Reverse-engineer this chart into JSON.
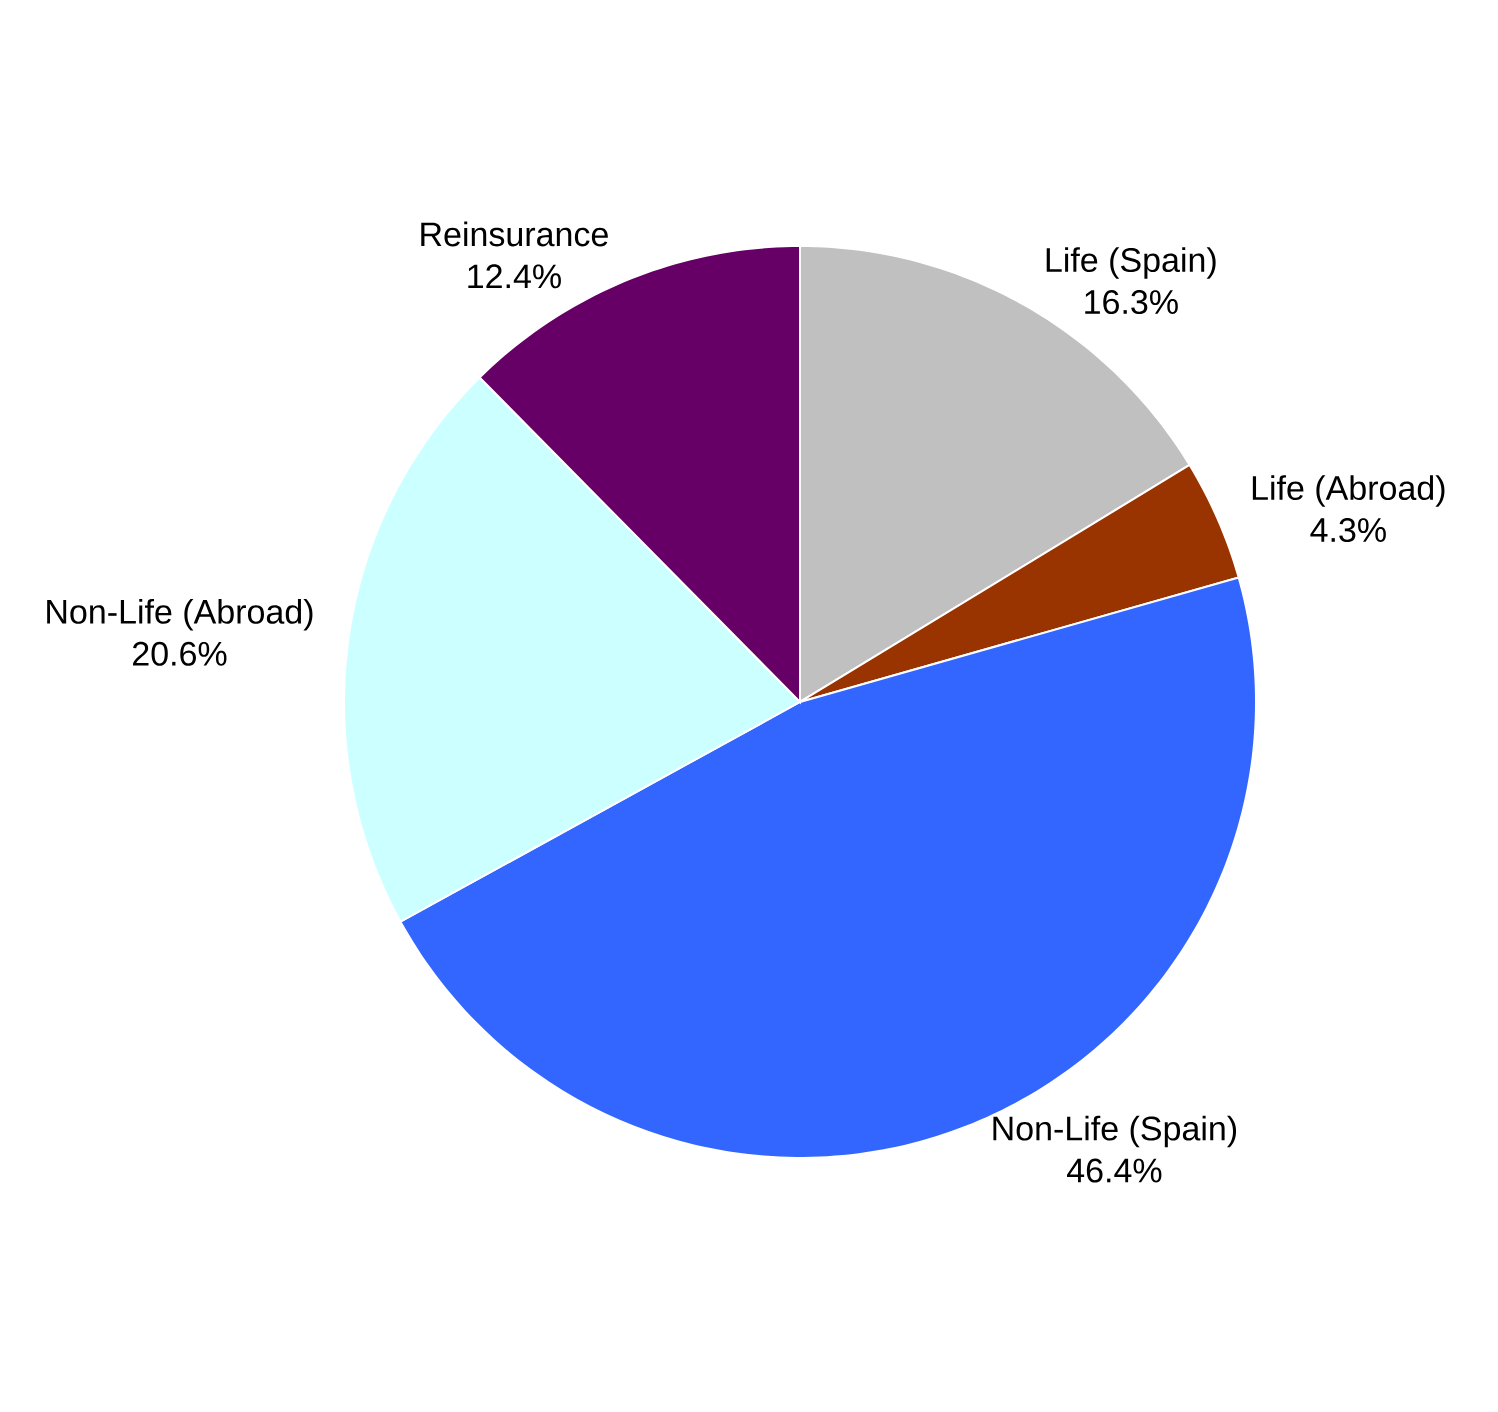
{
  "chart_data": {
    "type": "pie",
    "categories": [
      "Life (Spain)",
      "Life (Abroad)",
      "Non-Life (Spain)",
      "Non-Life (Abroad)",
      "Reinsurance"
    ],
    "values": [
      16.3,
      4.3,
      46.4,
      20.6,
      12.4
    ],
    "value_labels": [
      "16.3%",
      "4.3%",
      "46.4%",
      "20.6%",
      "12.4%"
    ],
    "colors": [
      "#c0c0c0",
      "#993300",
      "#3366ff",
      "#ccffff",
      "#660066"
    ]
  }
}
